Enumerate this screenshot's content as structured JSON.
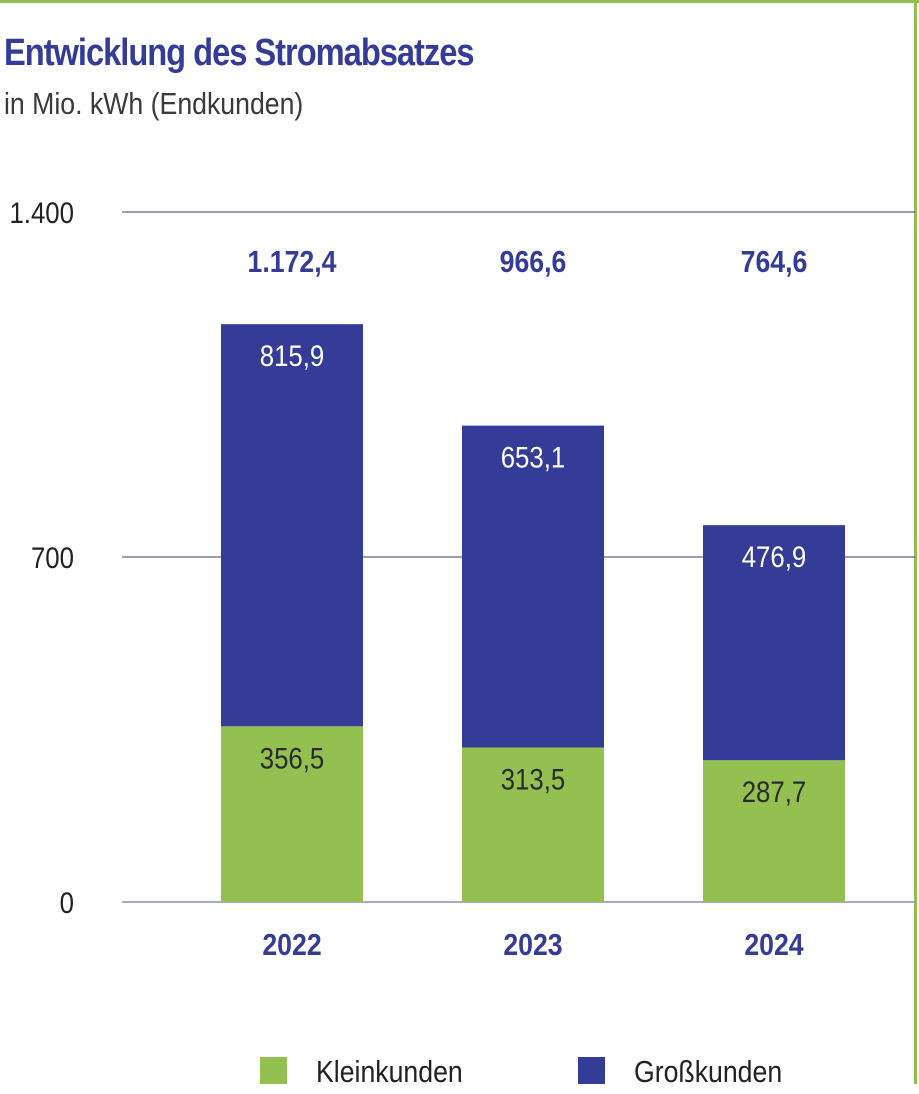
{
  "title": "Entwicklung des Stromabsatzes",
  "subtitle": "in Mio. kWh (Endkunden)",
  "chart_data": {
    "type": "bar",
    "stacked": true,
    "categories": [
      "2022",
      "2023",
      "2024"
    ],
    "series": [
      {
        "name": "Kleinkunden",
        "values": [
          356.5,
          313.5,
          287.7
        ],
        "labels": [
          "356,5",
          "313,5",
          "287,7"
        ],
        "color": "#93c050",
        "label_color": "#2b2b2b"
      },
      {
        "name": "Großkunden",
        "values": [
          815.9,
          653.1,
          476.9
        ],
        "labels": [
          "815,9",
          "653,1",
          "476,9"
        ],
        "color": "#353c97",
        "label_color": "#ffffff"
      }
    ],
    "totals": {
      "values": [
        1172.4,
        966.6,
        764.6
      ],
      "labels": [
        "1.172,4",
        "966,6",
        "764,6"
      ]
    },
    "yticks": [
      0,
      700,
      1400
    ],
    "ytick_labels": [
      "0",
      "700",
      "1.400"
    ],
    "ylim": [
      0,
      1400
    ],
    "grid": true,
    "legend_position": "bottom"
  }
}
